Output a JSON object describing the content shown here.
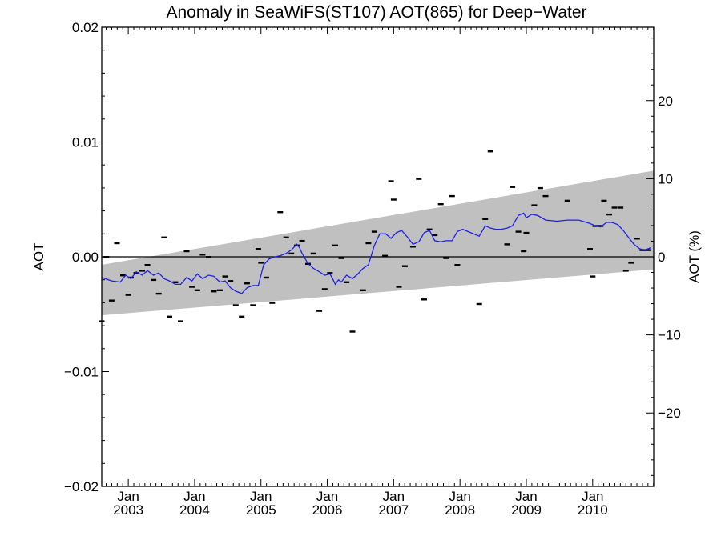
{
  "chart_data": {
    "type": "scatter",
    "title": "Anomaly in SeaWiFS(ST107) AOT(865) for Deep−Water",
    "ylabel": "AOT",
    "ylabel_right": "AOT (%)",
    "xlim": [
      2002.6,
      2010.92
    ],
    "ylim": [
      -0.02,
      0.02
    ],
    "ylim_right": [
      -29.4,
      29.4
    ],
    "x_ticks": [
      {
        "top": "Jan",
        "bottom": "2003",
        "x": 2003
      },
      {
        "top": "Jan",
        "bottom": "2004",
        "x": 2004
      },
      {
        "top": "Jan",
        "bottom": "2005",
        "x": 2005
      },
      {
        "top": "Jan",
        "bottom": "2006",
        "x": 2006
      },
      {
        "top": "Jan",
        "bottom": "2007",
        "x": 2007
      },
      {
        "top": "Jan",
        "bottom": "2008",
        "x": 2008
      },
      {
        "top": "Jan",
        "bottom": "2009",
        "x": 2009
      },
      {
        "top": "Jan",
        "bottom": "2010",
        "x": 2010
      }
    ],
    "y_ticks_left": [
      {
        "value": 0.02,
        "label": "0.02"
      },
      {
        "value": 0.01,
        "label": "0.01"
      },
      {
        "value": 0.0,
        "label": "0.00"
      },
      {
        "value": -0.01,
        "label": "−0.01"
      },
      {
        "value": -0.02,
        "label": "−0.02"
      }
    ],
    "y_ticks_right": [
      {
        "value": 20,
        "label": "20"
      },
      {
        "value": 10,
        "label": "10"
      },
      {
        "value": 0,
        "label": "0"
      },
      {
        "value": -10,
        "label": "−10"
      },
      {
        "value": -20,
        "label": "−20"
      }
    ],
    "band": {
      "color": "#c0c0c0",
      "x": [
        2002.6,
        2010.92
      ],
      "upper": [
        -0.0007,
        0.0075
      ],
      "lower": [
        -0.0051,
        -0.0011
      ]
    },
    "zero_line": 0.0,
    "series": [
      {
        "kind": "points",
        "color": "#000000",
        "points": [
          [
            2002.6,
            -0.0056
          ],
          [
            2002.67,
            0.0
          ],
          [
            2002.75,
            -0.0038
          ],
          [
            2002.83,
            0.0012
          ],
          [
            2002.92,
            -0.0016
          ],
          [
            2003.0,
            -0.0033
          ],
          [
            2003.04,
            -0.0018
          ],
          [
            2003.12,
            -0.0014
          ],
          [
            2003.21,
            -0.0012
          ],
          [
            2003.29,
            -0.0007
          ],
          [
            2003.38,
            -0.002
          ],
          [
            2003.46,
            -0.0032
          ],
          [
            2003.54,
            0.0017
          ],
          [
            2003.62,
            -0.0052
          ],
          [
            2003.71,
            -0.0022
          ],
          [
            2003.79,
            -0.0056
          ],
          [
            2003.88,
            0.0005
          ],
          [
            2003.96,
            -0.0026
          ],
          [
            2004.04,
            -0.0029
          ],
          [
            2004.12,
            0.0002
          ],
          [
            2004.21,
            0.0
          ],
          [
            2004.29,
            -0.003
          ],
          [
            2004.38,
            -0.0029
          ],
          [
            2004.46,
            -0.0017
          ],
          [
            2004.54,
            -0.0021
          ],
          [
            2004.62,
            -0.0042
          ],
          [
            2004.71,
            -0.0052
          ],
          [
            2004.79,
            -0.0023
          ],
          [
            2004.88,
            -0.0042
          ],
          [
            2004.96,
            0.0007
          ],
          [
            2005.0,
            -0.0005
          ],
          [
            2005.08,
            -0.0018
          ],
          [
            2005.17,
            -0.004
          ],
          [
            2005.29,
            0.0039
          ],
          [
            2005.38,
            0.0017
          ],
          [
            2005.46,
            0.0003
          ],
          [
            2005.54,
            0.001
          ],
          [
            2005.62,
            0.0014
          ],
          [
            2005.71,
            -0.0006
          ],
          [
            2005.79,
            0.0003
          ],
          [
            2005.88,
            -0.0047
          ],
          [
            2005.96,
            -0.0028
          ],
          [
            2006.04,
            -0.0014
          ],
          [
            2006.12,
            0.001
          ],
          [
            2006.21,
            -0.0001
          ],
          [
            2006.29,
            -0.0022
          ],
          [
            2006.38,
            -0.0065
          ],
          [
            2006.54,
            -0.0029
          ],
          [
            2006.62,
            0.0012
          ],
          [
            2006.71,
            0.0022
          ],
          [
            2006.87,
            0.0001
          ],
          [
            2006.96,
            0.0066
          ],
          [
            2007.0,
            0.005
          ],
          [
            2007.08,
            -0.0026
          ],
          [
            2007.17,
            -0.0008
          ],
          [
            2007.29,
            0.0009
          ],
          [
            2007.38,
            0.0068
          ],
          [
            2007.46,
            -0.0037
          ],
          [
            2007.54,
            0.0024
          ],
          [
            2007.62,
            0.0019
          ],
          [
            2007.71,
            0.0046
          ],
          [
            2007.79,
            -0.0001
          ],
          [
            2007.88,
            0.0053
          ],
          [
            2007.96,
            -0.0007
          ],
          [
            2008.29,
            -0.0041
          ],
          [
            2008.38,
            0.0033
          ],
          [
            2008.46,
            0.0092
          ],
          [
            2008.71,
            0.0011
          ],
          [
            2008.79,
            0.0061
          ],
          [
            2008.88,
            0.0022
          ],
          [
            2008.96,
            0.0005
          ],
          [
            2009.0,
            0.0021
          ],
          [
            2009.12,
            0.0045
          ],
          [
            2009.21,
            0.006
          ],
          [
            2009.29,
            0.0053
          ],
          [
            2009.62,
            0.0049
          ],
          [
            2009.96,
            0.0007
          ],
          [
            2010.0,
            -0.0017
          ],
          [
            2010.04,
            0.0027
          ],
          [
            2010.12,
            0.0027
          ],
          [
            2010.17,
            0.0049
          ],
          [
            2010.25,
            0.0037
          ],
          [
            2010.33,
            0.0043
          ],
          [
            2010.42,
            0.0043
          ],
          [
            2010.5,
            -0.0012
          ],
          [
            2010.58,
            -0.0005
          ],
          [
            2010.67,
            0.0016
          ],
          [
            2010.75,
            0.0006
          ],
          [
            2010.83,
            0.0006
          ]
        ]
      },
      {
        "kind": "line",
        "color": "#1f1fe6",
        "points": [
          [
            2002.6,
            -0.0018
          ],
          [
            2002.75,
            -0.0021
          ],
          [
            2002.88,
            -0.0022
          ],
          [
            2002.96,
            -0.0016
          ],
          [
            2003.04,
            -0.0019
          ],
          [
            2003.12,
            -0.0013
          ],
          [
            2003.21,
            -0.0016
          ],
          [
            2003.29,
            -0.0012
          ],
          [
            2003.38,
            -0.0016
          ],
          [
            2003.46,
            -0.0014
          ],
          [
            2003.54,
            -0.0019
          ],
          [
            2003.62,
            -0.0021
          ],
          [
            2003.71,
            -0.0024
          ],
          [
            2003.79,
            -0.0024
          ],
          [
            2003.88,
            -0.0018
          ],
          [
            2003.96,
            -0.0021
          ],
          [
            2004.04,
            -0.0015
          ],
          [
            2004.12,
            -0.0019
          ],
          [
            2004.21,
            -0.0016
          ],
          [
            2004.29,
            -0.0017
          ],
          [
            2004.38,
            -0.0022
          ],
          [
            2004.46,
            -0.0021
          ],
          [
            2004.54,
            -0.0027
          ],
          [
            2004.62,
            -0.003
          ],
          [
            2004.71,
            -0.0032
          ],
          [
            2004.79,
            -0.0027
          ],
          [
            2004.88,
            -0.0025
          ],
          [
            2004.96,
            -0.0025
          ],
          [
            2005.04,
            -0.0007
          ],
          [
            2005.12,
            -0.0002
          ],
          [
            2005.21,
            0.0
          ],
          [
            2005.29,
            0.0001
          ],
          [
            2005.38,
            0.0003
          ],
          [
            2005.46,
            0.0006
          ],
          [
            2005.54,
            0.0011
          ],
          [
            2005.58,
            0.0008
          ],
          [
            2005.62,
            0.0003
          ],
          [
            2005.71,
            -0.0006
          ],
          [
            2005.79,
            -0.001
          ],
          [
            2005.88,
            -0.0013
          ],
          [
            2005.96,
            -0.0016
          ],
          [
            2006.04,
            -0.0015
          ],
          [
            2006.08,
            -0.0019
          ],
          [
            2006.12,
            -0.0024
          ],
          [
            2006.17,
            -0.002
          ],
          [
            2006.21,
            -0.0022
          ],
          [
            2006.29,
            -0.0016
          ],
          [
            2006.38,
            -0.0019
          ],
          [
            2006.46,
            -0.0015
          ],
          [
            2006.54,
            -0.001
          ],
          [
            2006.62,
            -0.0007
          ],
          [
            2006.71,
            0.001
          ],
          [
            2006.79,
            0.002
          ],
          [
            2006.88,
            0.002
          ],
          [
            2006.96,
            0.0016
          ],
          [
            2007.04,
            0.0021
          ],
          [
            2007.12,
            0.0023
          ],
          [
            2007.21,
            0.0017
          ],
          [
            2007.29,
            0.0011
          ],
          [
            2007.38,
            0.0013
          ],
          [
            2007.46,
            0.0021
          ],
          [
            2007.54,
            0.0023
          ],
          [
            2007.62,
            0.0014
          ],
          [
            2007.71,
            0.0013
          ],
          [
            2007.79,
            0.0014
          ],
          [
            2007.88,
            0.0014
          ],
          [
            2007.96,
            0.0022
          ],
          [
            2008.04,
            0.0024
          ],
          [
            2008.12,
            0.0022
          ],
          [
            2008.29,
            0.0018
          ],
          [
            2008.38,
            0.0027
          ],
          [
            2008.46,
            0.0025
          ],
          [
            2008.54,
            0.0024
          ],
          [
            2008.62,
            0.0024
          ],
          [
            2008.71,
            0.0025
          ],
          [
            2008.79,
            0.0027
          ],
          [
            2008.88,
            0.0036
          ],
          [
            2008.96,
            0.0038
          ],
          [
            2009.0,
            0.0034
          ],
          [
            2009.08,
            0.0037
          ],
          [
            2009.17,
            0.0036
          ],
          [
            2009.29,
            0.0032
          ],
          [
            2009.46,
            0.0031
          ],
          [
            2009.62,
            0.0032
          ],
          [
            2009.79,
            0.0032
          ],
          [
            2009.96,
            0.0029
          ],
          [
            2010.04,
            0.0027
          ],
          [
            2010.12,
            0.0026
          ],
          [
            2010.21,
            0.003
          ],
          [
            2010.29,
            0.003
          ],
          [
            2010.38,
            0.0028
          ],
          [
            2010.46,
            0.0023
          ],
          [
            2010.54,
            0.0017
          ],
          [
            2010.62,
            0.0011
          ],
          [
            2010.71,
            0.0007
          ],
          [
            2010.79,
            0.0006
          ],
          [
            2010.88,
            0.0008
          ]
        ]
      }
    ]
  }
}
